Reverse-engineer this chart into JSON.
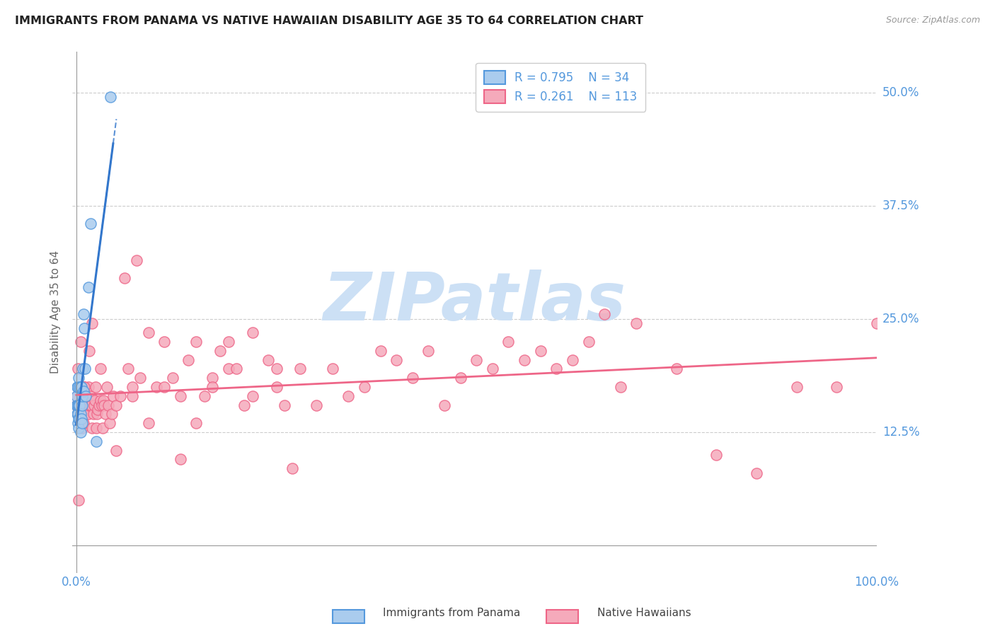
{
  "title": "IMMIGRANTS FROM PANAMA VS NATIVE HAWAIIAN DISABILITY AGE 35 TO 64 CORRELATION CHART",
  "source": "Source: ZipAtlas.com",
  "ylabel": "Disability Age 35 to 64",
  "xlim": [
    -0.005,
    1.0
  ],
  "ylim": [
    -0.03,
    0.545
  ],
  "ytick_positions": [
    0.125,
    0.25,
    0.375,
    0.5
  ],
  "ytick_labels": [
    "12.5%",
    "25.0%",
    "37.5%",
    "50.0%"
  ],
  "xtick_positions": [
    0.0,
    1.0
  ],
  "xtick_labels": [
    "0.0%",
    "100.0%"
  ],
  "color_panama_fill": "#aaccee",
  "color_panama_edge": "#5599dd",
  "color_hawaii_fill": "#f5aabb",
  "color_hawaii_edge": "#ee6688",
  "color_panama_line": "#3377cc",
  "color_hawaii_line": "#ee6688",
  "color_grid": "#cccccc",
  "color_title": "#222222",
  "color_axis_labels": "#5599dd",
  "color_ylabel": "#666666",
  "color_source": "#999999",
  "watermark_text": "ZIPatlas",
  "watermark_color": "#cce0f5",
  "legend_r1": "R = 0.795",
  "legend_n1": "N = 34",
  "legend_r2": "R = 0.261",
  "legend_n2": "N = 113",
  "panama_x": [
    0.0,
    0.0,
    0.001,
    0.001,
    0.001,
    0.002,
    0.002,
    0.002,
    0.002,
    0.003,
    0.003,
    0.003,
    0.003,
    0.004,
    0.004,
    0.004,
    0.005,
    0.005,
    0.005,
    0.006,
    0.006,
    0.007,
    0.007,
    0.007,
    0.008,
    0.009,
    0.009,
    0.01,
    0.011,
    0.012,
    0.015,
    0.018,
    0.025,
    0.043
  ],
  "panama_y": [
    0.155,
    0.165,
    0.145,
    0.155,
    0.175,
    0.135,
    0.145,
    0.155,
    0.175,
    0.13,
    0.14,
    0.155,
    0.185,
    0.14,
    0.155,
    0.175,
    0.125,
    0.145,
    0.175,
    0.14,
    0.175,
    0.135,
    0.155,
    0.165,
    0.195,
    0.17,
    0.255,
    0.24,
    0.195,
    0.165,
    0.285,
    0.355,
    0.115,
    0.495
  ],
  "hawaii_x": [
    0.0,
    0.001,
    0.002,
    0.002,
    0.003,
    0.004,
    0.005,
    0.005,
    0.006,
    0.006,
    0.007,
    0.007,
    0.008,
    0.009,
    0.01,
    0.01,
    0.011,
    0.012,
    0.013,
    0.014,
    0.015,
    0.015,
    0.016,
    0.016,
    0.017,
    0.018,
    0.019,
    0.02,
    0.021,
    0.022,
    0.023,
    0.024,
    0.025,
    0.026,
    0.027,
    0.028,
    0.03,
    0.032,
    0.033,
    0.034,
    0.035,
    0.036,
    0.038,
    0.04,
    0.042,
    0.044,
    0.046,
    0.05,
    0.055,
    0.06,
    0.065,
    0.07,
    0.075,
    0.08,
    0.09,
    0.1,
    0.11,
    0.12,
    0.13,
    0.14,
    0.15,
    0.16,
    0.17,
    0.18,
    0.19,
    0.2,
    0.21,
    0.22,
    0.24,
    0.25,
    0.26,
    0.28,
    0.3,
    0.32,
    0.34,
    0.36,
    0.38,
    0.4,
    0.42,
    0.44,
    0.46,
    0.48,
    0.5,
    0.52,
    0.54,
    0.56,
    0.58,
    0.6,
    0.62,
    0.64,
    0.66,
    0.68,
    0.7,
    0.75,
    0.8,
    0.85,
    0.9,
    0.95,
    1.0,
    0.01,
    0.02,
    0.03,
    0.05,
    0.07,
    0.09,
    0.11,
    0.13,
    0.15,
    0.17,
    0.19,
    0.22,
    0.25,
    0.27
  ],
  "hawaii_y": [
    0.155,
    0.165,
    0.145,
    0.195,
    0.05,
    0.155,
    0.145,
    0.225,
    0.145,
    0.175,
    0.13,
    0.165,
    0.135,
    0.135,
    0.145,
    0.175,
    0.155,
    0.165,
    0.155,
    0.155,
    0.145,
    0.175,
    0.155,
    0.215,
    0.155,
    0.165,
    0.155,
    0.13,
    0.145,
    0.155,
    0.16,
    0.175,
    0.13,
    0.145,
    0.15,
    0.155,
    0.16,
    0.155,
    0.13,
    0.16,
    0.155,
    0.145,
    0.175,
    0.155,
    0.135,
    0.145,
    0.165,
    0.155,
    0.165,
    0.295,
    0.195,
    0.165,
    0.315,
    0.185,
    0.235,
    0.175,
    0.225,
    0.185,
    0.165,
    0.205,
    0.225,
    0.165,
    0.185,
    0.215,
    0.195,
    0.195,
    0.155,
    0.165,
    0.205,
    0.175,
    0.155,
    0.195,
    0.155,
    0.195,
    0.165,
    0.175,
    0.215,
    0.205,
    0.185,
    0.215,
    0.155,
    0.185,
    0.205,
    0.195,
    0.225,
    0.205,
    0.215,
    0.195,
    0.205,
    0.225,
    0.255,
    0.175,
    0.245,
    0.195,
    0.1,
    0.08,
    0.175,
    0.175,
    0.245,
    0.175,
    0.245,
    0.195,
    0.105,
    0.175,
    0.135,
    0.175,
    0.095,
    0.135,
    0.175,
    0.225,
    0.235,
    0.195,
    0.085
  ]
}
